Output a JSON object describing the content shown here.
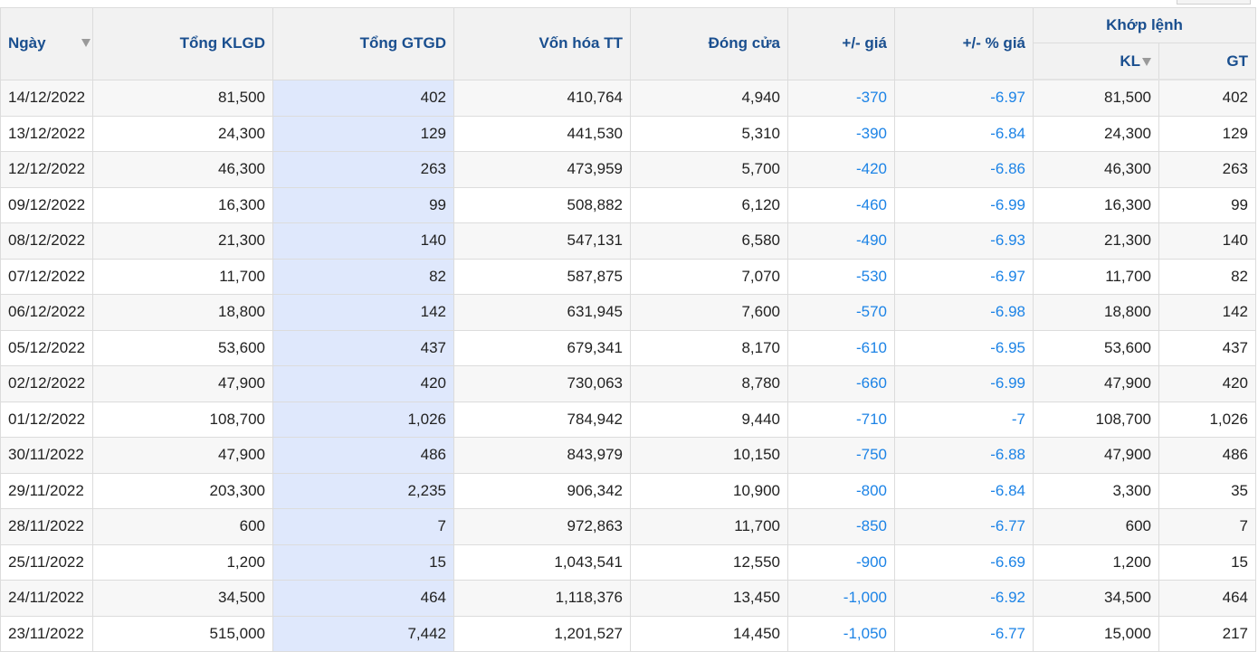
{
  "columns": {
    "date": "Ngày",
    "total_volume": "Tổng KLGD",
    "total_value": "Tổng GTGD",
    "market_cap": "Vốn hóa TT",
    "close": "Đóng cửa",
    "change": "+/- giá",
    "change_pct": "+/- % giá",
    "matched_group": "Khớp lệnh",
    "matched_volume": "KL",
    "matched_value": "GT"
  },
  "rows": [
    {
      "date": "14/12/2022",
      "klgd": "81,500",
      "gtgd": "402",
      "von_hoa": "410,764",
      "dong_cua": "4,940",
      "chg": "-370",
      "chg_pct": "-6.97",
      "kl": "81,500",
      "gt": "402"
    },
    {
      "date": "13/12/2022",
      "klgd": "24,300",
      "gtgd": "129",
      "von_hoa": "441,530",
      "dong_cua": "5,310",
      "chg": "-390",
      "chg_pct": "-6.84",
      "kl": "24,300",
      "gt": "129"
    },
    {
      "date": "12/12/2022",
      "klgd": "46,300",
      "gtgd": "263",
      "von_hoa": "473,959",
      "dong_cua": "5,700",
      "chg": "-420",
      "chg_pct": "-6.86",
      "kl": "46,300",
      "gt": "263"
    },
    {
      "date": "09/12/2022",
      "klgd": "16,300",
      "gtgd": "99",
      "von_hoa": "508,882",
      "dong_cua": "6,120",
      "chg": "-460",
      "chg_pct": "-6.99",
      "kl": "16,300",
      "gt": "99"
    },
    {
      "date": "08/12/2022",
      "klgd": "21,300",
      "gtgd": "140",
      "von_hoa": "547,131",
      "dong_cua": "6,580",
      "chg": "-490",
      "chg_pct": "-6.93",
      "kl": "21,300",
      "gt": "140"
    },
    {
      "date": "07/12/2022",
      "klgd": "11,700",
      "gtgd": "82",
      "von_hoa": "587,875",
      "dong_cua": "7,070",
      "chg": "-530",
      "chg_pct": "-6.97",
      "kl": "11,700",
      "gt": "82"
    },
    {
      "date": "06/12/2022",
      "klgd": "18,800",
      "gtgd": "142",
      "von_hoa": "631,945",
      "dong_cua": "7,600",
      "chg": "-570",
      "chg_pct": "-6.98",
      "kl": "18,800",
      "gt": "142"
    },
    {
      "date": "05/12/2022",
      "klgd": "53,600",
      "gtgd": "437",
      "von_hoa": "679,341",
      "dong_cua": "8,170",
      "chg": "-610",
      "chg_pct": "-6.95",
      "kl": "53,600",
      "gt": "437"
    },
    {
      "date": "02/12/2022",
      "klgd": "47,900",
      "gtgd": "420",
      "von_hoa": "730,063",
      "dong_cua": "8,780",
      "chg": "-660",
      "chg_pct": "-6.99",
      "kl": "47,900",
      "gt": "420"
    },
    {
      "date": "01/12/2022",
      "klgd": "108,700",
      "gtgd": "1,026",
      "von_hoa": "784,942",
      "dong_cua": "9,440",
      "chg": "-710",
      "chg_pct": "-7",
      "kl": "108,700",
      "gt": "1,026"
    },
    {
      "date": "30/11/2022",
      "klgd": "47,900",
      "gtgd": "486",
      "von_hoa": "843,979",
      "dong_cua": "10,150",
      "chg": "-750",
      "chg_pct": "-6.88",
      "kl": "47,900",
      "gt": "486"
    },
    {
      "date": "29/11/2022",
      "klgd": "203,300",
      "gtgd": "2,235",
      "von_hoa": "906,342",
      "dong_cua": "10,900",
      "chg": "-800",
      "chg_pct": "-6.84",
      "kl": "3,300",
      "gt": "35"
    },
    {
      "date": "28/11/2022",
      "klgd": "600",
      "gtgd": "7",
      "von_hoa": "972,863",
      "dong_cua": "11,700",
      "chg": "-850",
      "chg_pct": "-6.77",
      "kl": "600",
      "gt": "7"
    },
    {
      "date": "25/11/2022",
      "klgd": "1,200",
      "gtgd": "15",
      "von_hoa": "1,043,541",
      "dong_cua": "12,550",
      "chg": "-900",
      "chg_pct": "-6.69",
      "kl": "1,200",
      "gt": "15"
    },
    {
      "date": "24/11/2022",
      "klgd": "34,500",
      "gtgd": "464",
      "von_hoa": "1,118,376",
      "dong_cua": "13,450",
      "chg": "-1,000",
      "chg_pct": "-6.92",
      "kl": "34,500",
      "gt": "464"
    },
    {
      "date": "23/11/2022",
      "klgd": "515,000",
      "gtgd": "7,442",
      "von_hoa": "1,201,527",
      "dong_cua": "14,450",
      "chg": "-1,050",
      "chg_pct": "-6.77",
      "kl": "15,000",
      "gt": "217"
    }
  ],
  "colors": {
    "header_text": "#1a4f8f",
    "change_text": "#1c83e6",
    "highlight_column": "#dfe8fc",
    "header_bg": "#f2f2f2"
  },
  "icons": {
    "date_sort": "sort-down-icon",
    "kl_sort": "sort-down-icon"
  }
}
